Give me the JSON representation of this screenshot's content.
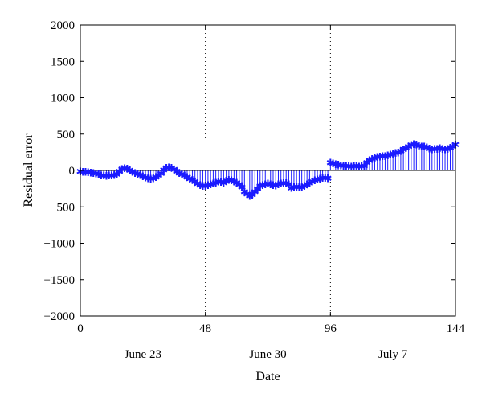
{
  "chart_data": {
    "type": "stem",
    "xlabel": "Date",
    "ylabel": "Residual error",
    "xlim": [
      0,
      144
    ],
    "ylim": [
      -2000,
      2000
    ],
    "xticks": [
      0,
      48,
      96,
      144
    ],
    "xtick_labels": [
      "0",
      "48",
      "96",
      "144"
    ],
    "yticks": [
      2000,
      1500,
      1000,
      500,
      0,
      -500,
      -1000,
      -1500,
      -2000
    ],
    "ytick_labels": [
      "2000",
      "1500",
      "1000",
      "500",
      "0",
      "−500",
      "−1000",
      "−1500",
      "−2000"
    ],
    "date_labels": [
      {
        "text": "June 23",
        "x": 24
      },
      {
        "text": "June 30",
        "x": 72
      },
      {
        "text": "July 7",
        "x": 120
      }
    ],
    "vlines": [
      48,
      96
    ],
    "grid": false,
    "series_color": "#1a1aff",
    "marker": "star",
    "values": [
      -20,
      -25,
      -30,
      -35,
      -40,
      -45,
      -50,
      -60,
      -75,
      -80,
      -85,
      -80,
      -78,
      -70,
      -60,
      -20,
      10,
      20,
      15,
      -5,
      -30,
      -45,
      -55,
      -70,
      -90,
      -105,
      -115,
      -120,
      -115,
      -100,
      -80,
      -50,
      0,
      30,
      35,
      25,
      5,
      -20,
      -45,
      -60,
      -80,
      -100,
      -120,
      -140,
      -160,
      -190,
      -210,
      -220,
      -220,
      -210,
      -200,
      -190,
      -175,
      -160,
      -165,
      -175,
      -150,
      -140,
      -145,
      -160,
      -175,
      -200,
      -240,
      -300,
      -330,
      -360,
      -340,
      -300,
      -260,
      -220,
      -210,
      -200,
      -190,
      -200,
      -210,
      -215,
      -200,
      -190,
      -180,
      -185,
      -200,
      -250,
      -240,
      -230,
      -235,
      -240,
      -220,
      -200,
      -180,
      -160,
      -145,
      -130,
      -120,
      -110,
      -110,
      -115,
      100,
      90,
      80,
      70,
      60,
      55,
      55,
      50,
      45,
      50,
      55,
      45,
      50,
      55,
      100,
      130,
      150,
      160,
      175,
      185,
      190,
      190,
      200,
      210,
      220,
      230,
      240,
      260,
      280,
      300,
      320,
      340,
      355,
      350,
      330,
      320,
      320,
      310,
      295,
      280,
      285,
      290,
      300,
      290,
      280,
      290,
      305,
      320,
      350
    ]
  }
}
